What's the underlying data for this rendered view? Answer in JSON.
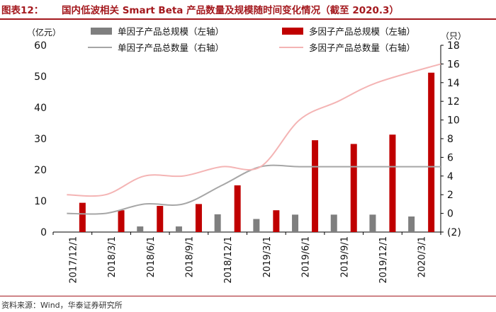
{
  "figure": {
    "label": "图表12：",
    "title": "国内低波相关 Smart Beta 产品数量及规模随时间变化情况（截至 2020.3）",
    "source": "资料来源：Wind，华泰证券研究所"
  },
  "chart_data": {
    "type": "bar",
    "categories": [
      "2017/12/1",
      "2018/3/1",
      "2018/6/1",
      "2018/9/1",
      "2018/12/1",
      "2019/3/1",
      "2019/6/1",
      "2019/9/1",
      "2019/12/1",
      "2020/3/1"
    ],
    "left_axis": {
      "unit": "（亿元）",
      "min": 0,
      "max": 60,
      "ticks": [
        "0",
        "10",
        "20",
        "30",
        "40",
        "50",
        "60"
      ]
    },
    "right_axis": {
      "unit": "（只）",
      "min": -2,
      "max": 18,
      "ticks": [
        "(2)",
        "0",
        "2",
        "4",
        "6",
        "8",
        "10",
        "12",
        "14",
        "16",
        "18"
      ]
    },
    "series": [
      {
        "name": "单因子产品总规模（左轴）",
        "type": "bar",
        "axis": "left",
        "color": "#7f7f7f",
        "values": [
          0,
          0,
          1.8,
          1.8,
          5.7,
          4.2,
          5.6,
          5.6,
          5.6,
          5.0
        ]
      },
      {
        "name": "多因子产品总规模（左轴）",
        "type": "bar",
        "axis": "left",
        "color": "#c00000",
        "values": [
          9.4,
          7.0,
          8.4,
          9.0,
          15.0,
          7.0,
          29.5,
          28.3,
          31.3,
          51.2
        ]
      },
      {
        "name": "单因子产品总数量（右轴）",
        "type": "line",
        "axis": "right",
        "color": "#a6a6a6",
        "values": [
          0,
          0,
          1,
          1,
          3,
          5,
          5,
          5,
          5,
          5
        ]
      },
      {
        "name": "多因子产品总数量（右轴）",
        "type": "line",
        "axis": "right",
        "color": "#f4b4b4",
        "values": [
          2,
          2,
          4,
          4,
          5,
          5,
          10,
          12,
          14,
          16
        ]
      }
    ]
  }
}
